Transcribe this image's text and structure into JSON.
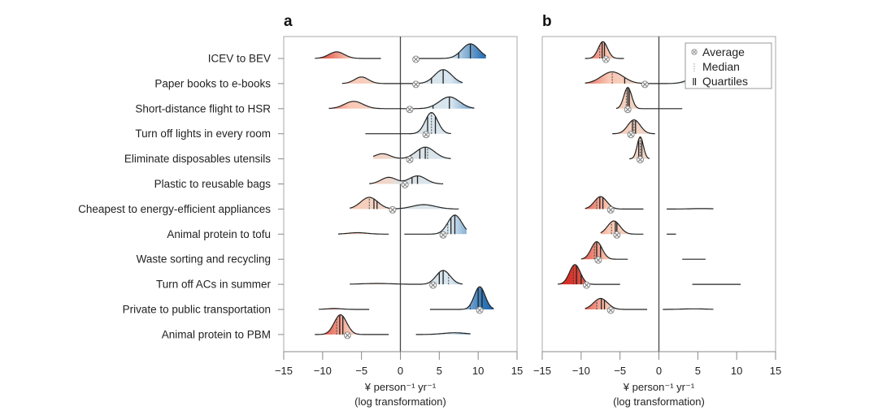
{
  "chart_data": {
    "type": "ridgeline",
    "title": "",
    "categories": [
      "ICEV to BEV",
      "Paper books to e-books",
      "Short-distance flight to HSR",
      "Turn off lights in every room",
      "Eliminate disposables utensils",
      "Plastic to reusable bags",
      "Cheapest to energy-efficient appliances",
      "Animal protein to tofu",
      "Waste sorting and recycling",
      "Turn off ACs in summer",
      "Private to public transportation",
      "Animal protein to PBM"
    ],
    "xlim": [
      -15,
      15
    ],
    "xticks": [
      -15,
      -10,
      -5,
      0,
      5,
      10,
      15
    ],
    "xlabel_line1": "¥ person⁻¹ yr⁻¹",
    "xlabel_line2": "(log transformation)",
    "legend": {
      "placement": "top-right of panel b",
      "items": [
        {
          "symbol": "average-marker",
          "label": "Average"
        },
        {
          "symbol": "median-line",
          "label": "Median"
        },
        {
          "symbol": "quartile-lines",
          "label": "Quartiles"
        }
      ]
    },
    "panels": [
      {
        "letter": "a",
        "rows": [
          {
            "range": [
              -11,
              -2.5
            ],
            "range2": [
              2,
              11
            ],
            "components": [
              [
                -8.2,
                1.0,
                0.45
              ],
              [
                9,
                1.1,
                1.0
              ]
            ],
            "average": 2,
            "median": 9,
            "quartiles": [
              7.5,
              9
            ]
          },
          {
            "range": [
              -7.5,
              8
            ],
            "components": [
              [
                -5,
                0.9,
                0.45
              ],
              [
                5.5,
                1.1,
                0.95
              ]
            ],
            "average": 2,
            "median": 5.5,
            "quartiles": [
              4,
              5.5
            ]
          },
          {
            "range": [
              -9.2,
              9.5
            ],
            "components": [
              [
                -6,
                1.2,
                0.5
              ],
              [
                6.3,
                1.3,
                0.8
              ]
            ],
            "average": 1.2,
            "median": 6.3,
            "quartiles": [
              4.2,
              6.3
            ]
          },
          {
            "range": [
              -4.5,
              6.5
            ],
            "components": [
              [
                4,
                0.8,
                1.45
              ]
            ],
            "average": 3.3,
            "median": 4,
            "quartiles": [
              3.5,
              4.5
            ]
          },
          {
            "range": [
              -3.5,
              6.5
            ],
            "components": [
              [
                -2.3,
                1.0,
                0.35
              ],
              [
                3.2,
                1.2,
                0.8
              ]
            ],
            "average": 1.2,
            "median": 3.5,
            "quartiles": [
              2.5,
              3.2
            ]
          },
          {
            "range": [
              -4,
              5.5
            ],
            "components": [
              [
                -1.5,
                1.0,
                0.45
              ],
              [
                2.2,
                1.1,
                0.55
              ]
            ],
            "average": 0.6,
            "median": 2.2,
            "quartiles": [
              1.5,
              2.2
            ]
          },
          {
            "range": [
              -6.5,
              7.5
            ],
            "components": [
              [
                -4,
                1.1,
                0.8
              ],
              [
                3,
                1.5,
                0.3
              ]
            ],
            "average": -1,
            "median": -4,
            "quartiles": [
              -3.4,
              -3.0
            ]
          },
          {
            "range": [
              -8,
              -1.5
            ],
            "range2": [
              0.5,
              8.5
            ],
            "components": [
              [
                -5.5,
                1.2,
                0.1
              ],
              [
                7,
                0.9,
                1.3
              ]
            ],
            "average": 5.5,
            "median": 6.1,
            "quartiles": [
              6.5,
              7
            ]
          },
          {
            "range": null,
            "components": [],
            "average": null,
            "median": null,
            "quartiles": []
          },
          {
            "range": [
              -6.5,
              8
            ],
            "components": [
              [
                -3,
                2.0,
                0.06
              ],
              [
                5.5,
                0.9,
                0.95
              ]
            ],
            "average": 4.2,
            "median": 6.2,
            "quartiles": [
              5.0,
              5.5
            ]
          },
          {
            "range": [
              -10.5,
              -4
            ],
            "range2": [
              3.8,
              12
            ],
            "components": [
              [
                -8.5,
                1.0,
                0.06
              ],
              [
                10.2,
                0.7,
                1.55
              ]
            ],
            "average": 10.2,
            "median": 9,
            "quartiles": [
              10,
              10.5
            ]
          },
          {
            "range": [
              -11,
              -1.5
            ],
            "range2": [
              2,
              9
            ],
            "components": [
              [
                -7.7,
                0.8,
                1.35
              ],
              [
                7,
                1.5,
                0.12
              ]
            ],
            "average": -6.8,
            "median": -8.2,
            "quartiles": [
              -7.8,
              -7.4
            ]
          }
        ]
      },
      {
        "letter": "b",
        "rows": [
          {
            "range": [
              -9.5,
              -4.5
            ],
            "components": [
              [
                -7.2,
                0.6,
                1.15
              ]
            ],
            "average": -6.8,
            "median": -7.6,
            "quartiles": [
              -7.3,
              -7.0
            ]
          },
          {
            "range": [],
            "range_": [
              -9.5,
              7.5
            ],
            "components": [
              [
                -6,
                1.4,
                0.8
              ],
              [
                5,
                1.2,
                0.45
              ]
            ],
            "average": -1.8,
            "median": -6.0,
            "quartiles": [
              -4.4,
              4.3
            ]
          },
          {
            "range": [
              -5.5,
              3
            ],
            "components": [
              [
                -4,
                0.5,
                1.45
              ]
            ],
            "average": -4,
            "median": -4.2,
            "quartiles": [
              -4.0,
              -3.8
            ]
          },
          {
            "range": [
              -6,
              -0.5
            ],
            "components": [
              [
                -3.2,
                0.8,
                0.95
              ]
            ],
            "average": -3.6,
            "median": -3.2,
            "quartiles": [
              -3.4,
              -3.0
            ]
          },
          {
            "range": [
              -3.8,
              -1.2
            ],
            "components": [
              [
                -2.4,
                0.4,
                1.5
              ]
            ],
            "average": -2.4,
            "median": -2.4,
            "quartiles": [
              -2.6,
              -2.2
            ]
          },
          {
            "range": null,
            "components": [],
            "average": null,
            "median": null,
            "quartiles": []
          },
          {
            "range": [
              -9.5,
              -2
            ],
            "range2": [
              1,
              7
            ],
            "components": [
              [
                -7.5,
                0.8,
                0.85
              ],
              [
                5.5,
                1.5,
                0.03
              ]
            ],
            "average": -6.2,
            "median": -8,
            "quartiles": [
              -7.6,
              -7.2
            ]
          },
          {
            "range": [
              -7.5,
              -2
            ],
            "range2": [
              1,
              2.2
            ],
            "components": [
              [
                -5.8,
                0.8,
                0.9
              ]
            ],
            "average": -5.4,
            "median": -6.1,
            "quartiles": [
              -5.6,
              -5.4
            ]
          },
          {
            "range": [
              -10,
              -4
            ],
            "range2": [
              3,
              6
            ],
            "components": [
              [
                -8,
                0.7,
                1.2
              ]
            ],
            "average": -7.8,
            "median": -8.3,
            "quartiles": [
              -8.0,
              -7.5
            ]
          },
          {
            "range": [
              -13,
              -5
            ],
            "range2": [
              4.3,
              10.5
            ],
            "components": [
              [
                -10.8,
                0.7,
                1.35
              ]
            ],
            "average": -9.3,
            "median": -11.0,
            "quartiles": [
              -10.6,
              -10.0
            ]
          },
          {
            "range": [
              -9.5,
              -1.5
            ],
            "range2": [
              0.5,
              7
            ],
            "components": [
              [
                -7.5,
                0.9,
                0.75
              ],
              [
                4.5,
                1.5,
                0.04
              ]
            ],
            "average": -6.2,
            "median": -8,
            "quartiles": [
              -7.4,
              -7.0
            ]
          },
          {
            "range": null,
            "components": [],
            "average": null,
            "median": null,
            "quartiles": []
          }
        ]
      }
    ]
  }
}
